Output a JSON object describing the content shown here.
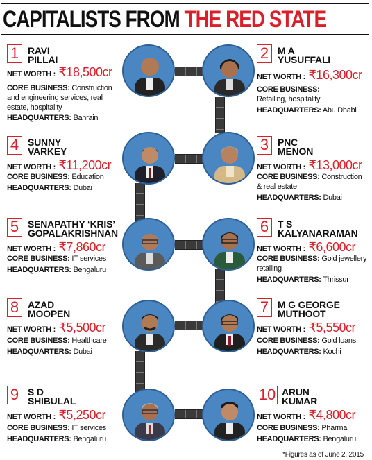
{
  "title": {
    "part1": "CAPITALISTS FROM",
    "part2": "THE RED STATE"
  },
  "labels": {
    "net_worth": "NET WORTH :",
    "core_business": "CORE BUSINESS:",
    "headquarters": "HEADQUARTERS:"
  },
  "people": [
    {
      "rank": "1",
      "name1": "RAVI",
      "name2": "PILLAI",
      "net_worth": "₹18,500cr",
      "core_business": "Construction and engineering services, real estate, hospitality",
      "headquarters": "Bahrain"
    },
    {
      "rank": "2",
      "name1": "M A",
      "name2": "YUSUFFALI",
      "net_worth": "₹16,300cr",
      "core_business": "Retailing, hospitality",
      "headquarters": "Abu Dhabi"
    },
    {
      "rank": "3",
      "name1": "PNC",
      "name2": "MENON",
      "net_worth": "₹13,000cr",
      "core_business": "Construction & real estate",
      "headquarters": "Dubai"
    },
    {
      "rank": "4",
      "name1": "SUNNY",
      "name2": "VARKEY",
      "net_worth": "₹11,200cr",
      "core_business": "Education",
      "headquarters": "Dubai"
    },
    {
      "rank": "5",
      "name1": "SENAPATHY ‘KRIS’",
      "name2": "GOPALAKRISHNAN",
      "net_worth": "₹7,860cr",
      "core_business": "IT services",
      "headquarters": "Bengaluru"
    },
    {
      "rank": "6",
      "name1": "T S",
      "name2": "KALYANARAMAN",
      "net_worth": "₹6,600cr",
      "core_business": "Gold jewellery retailing",
      "headquarters": "Thrissur"
    },
    {
      "rank": "7",
      "name1": "M G GEORGE",
      "name2": "MUTHOOT",
      "net_worth": "₹5,550cr",
      "core_business": "Gold loans",
      "headquarters": "Kochi"
    },
    {
      "rank": "8",
      "name1": "AZAD",
      "name2": "MOOPEN",
      "net_worth": "₹5,500cr",
      "core_business": "Healthcare",
      "headquarters": "Dubai"
    },
    {
      "rank": "9",
      "name1": "S D",
      "name2": "SHIBULAL",
      "net_worth": "₹5,250cr",
      "core_business": "IT services",
      "headquarters": "Bengaluru"
    },
    {
      "rank": "10",
      "name1": "ARUN",
      "name2": "KUMAR",
      "net_worth": "₹4,800cr",
      "core_business": "Pharma",
      "headquarters": "Bengaluru"
    }
  ],
  "footnote": "*Figures as of June 2, 2015",
  "colors": {
    "accent_red": "#d8202a",
    "photo_bg": "#4a86c2",
    "chain": "#3a3a3a"
  }
}
